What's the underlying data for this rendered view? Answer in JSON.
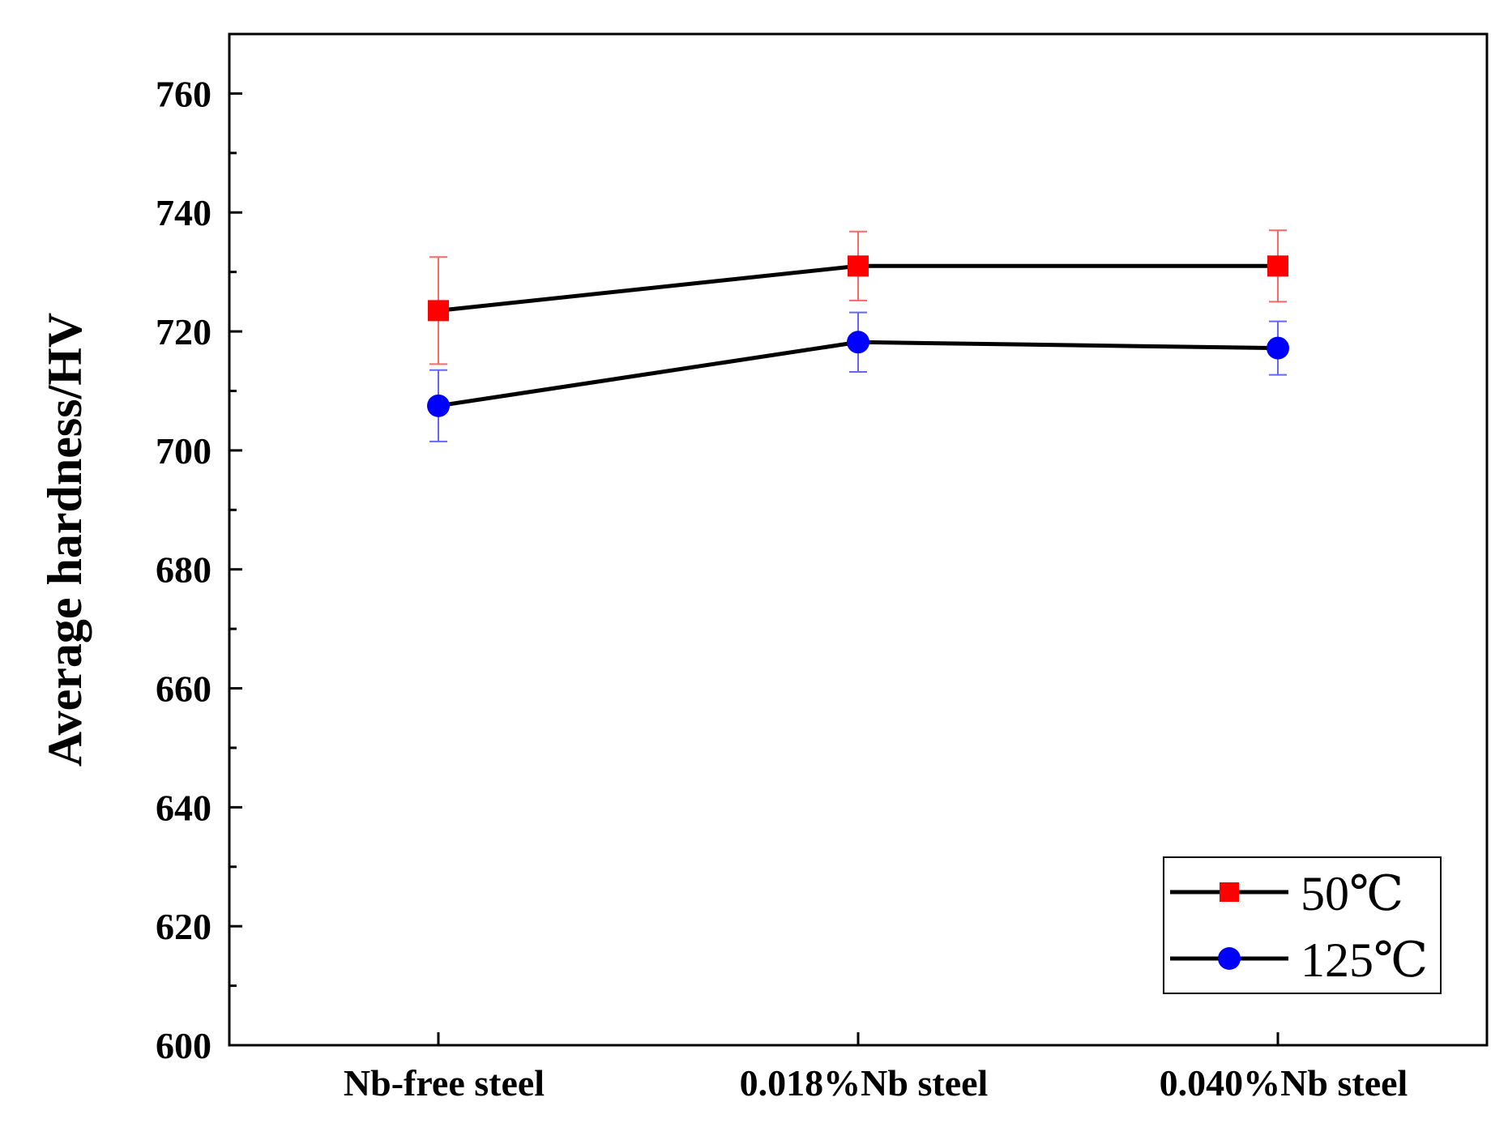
{
  "chart_data": {
    "type": "line",
    "title": "",
    "xlabel": "",
    "ylabel": "Average hardness/HV",
    "categories": [
      "Nb-free steel",
      "0.018%Nb steel",
      "0.040%Nb steel"
    ],
    "ylim": [
      600,
      770
    ],
    "yticks": [
      600,
      620,
      640,
      660,
      680,
      700,
      720,
      740,
      760
    ],
    "yticks_minor": [
      610,
      630,
      650,
      670,
      690,
      710,
      730,
      750
    ],
    "grid": false,
    "legend_position": "bottom-right",
    "series": [
      {
        "name": "50℃",
        "marker": "square",
        "color": "#ff0000",
        "error_color": "#ff6666",
        "line_color": "#000000",
        "values": [
          723.5,
          731.0,
          731.0
        ],
        "errors": [
          9.0,
          5.8,
          6.0
        ]
      },
      {
        "name": "125℃",
        "marker": "circle",
        "color": "#0000ff",
        "error_color": "#6666ff",
        "line_color": "#000000",
        "values": [
          707.5,
          718.2,
          717.2
        ],
        "errors": [
          6.0,
          5.0,
          4.5
        ]
      }
    ]
  }
}
